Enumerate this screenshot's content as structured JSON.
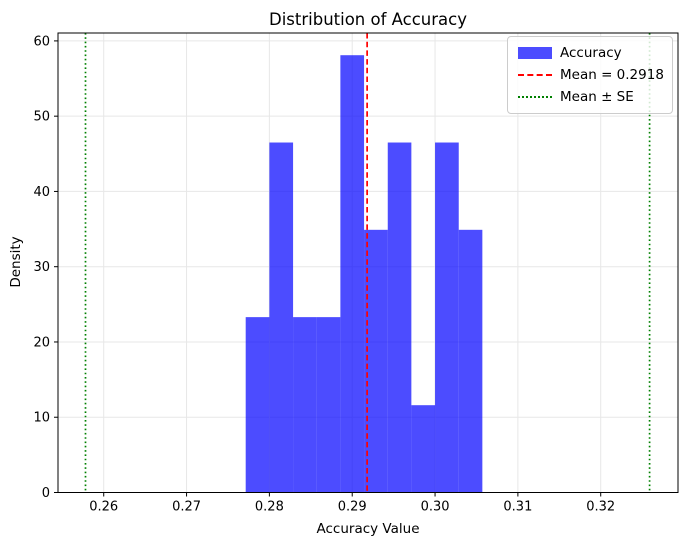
{
  "figure": {
    "title": "Distribution of Accuracy",
    "xlabel": "Accuracy Value",
    "ylabel": "Density"
  },
  "legend": {
    "position": "upper-right",
    "items": [
      {
        "label": "Accuracy",
        "swatch": "patch"
      },
      {
        "label": "Mean = 0.2918",
        "swatch": "dashed-line"
      },
      {
        "label": "Mean ± SE",
        "swatch": "dotted-line"
      }
    ]
  },
  "chart_data": {
    "type": "bar",
    "subtype": "histogram",
    "title": "Distribution of Accuracy",
    "xlabel": "Accuracy Value",
    "ylabel": "Density",
    "series_name": "Accuracy",
    "bin_edges": [
      0.27714,
      0.28,
      0.28286,
      0.28571,
      0.28857,
      0.29143,
      0.29429,
      0.29714,
      0.3,
      0.30286,
      0.30571
    ],
    "densities": [
      23.3,
      46.5,
      23.3,
      23.3,
      58.1,
      34.9,
      46.5,
      11.6,
      46.5,
      34.9
    ],
    "mean": 0.2918,
    "mean_minus_se": 0.2578,
    "mean_plus_se": 0.3259,
    "x_ticks": [
      0.26,
      0.27,
      0.28,
      0.29,
      0.3,
      0.31,
      0.32
    ],
    "x_tick_labels": [
      "0.26",
      "0.27",
      "0.28",
      "0.29",
      "0.30",
      "0.31",
      "0.32"
    ],
    "y_ticks": [
      0,
      10,
      20,
      30,
      40,
      50,
      60
    ],
    "y_tick_labels": [
      "0",
      "10",
      "20",
      "30",
      "40",
      "50",
      "60"
    ],
    "xlim": [
      0.25448,
      0.32933
    ],
    "ylim": [
      0,
      61.05
    ],
    "grid": true,
    "legend_position": "upper right",
    "colors": {
      "bar": "#0000ff",
      "bar_alpha": 0.7,
      "mean_line": "#ff0000",
      "se_line": "#008000",
      "grid": "#e7e7e7",
      "spine": "#000000",
      "legend_border": "#cccccc"
    }
  }
}
